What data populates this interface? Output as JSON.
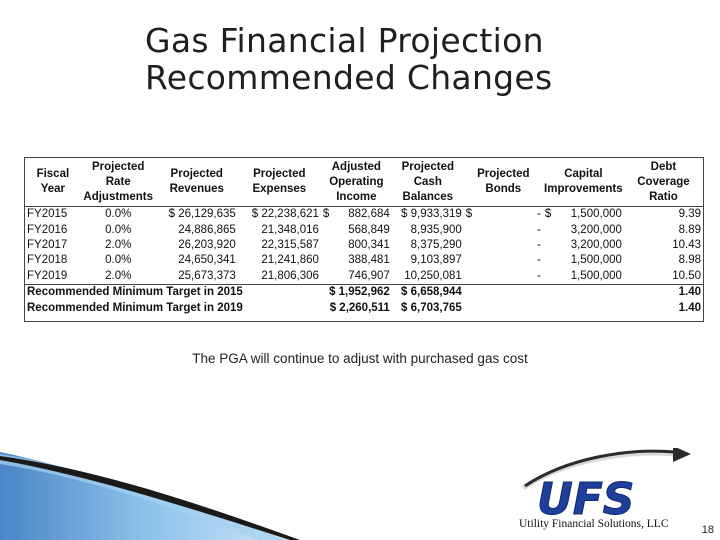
{
  "title": {
    "line1": "Gas Financial Projection",
    "line2": "Recommended Changes"
  },
  "table": {
    "headers": [
      "Fiscal Year",
      "Projected Rate Adjustments",
      "Projected Revenues",
      "Projected Expenses",
      "Adjusted Operating Income",
      "Projected Cash Balances",
      "Projected Bonds",
      "Capital Improvements",
      "Debt Coverage Ratio"
    ],
    "rows": [
      {
        "year": "FY2015",
        "rate": "0.0%",
        "revenues": "$ 26,129,635",
        "expenses": "$ 22,238,621",
        "income_cur": "$",
        "income": "882,684",
        "cash": "$ 9,933,319",
        "bonds_cur": "$",
        "bonds": "-",
        "capital_cur": "$",
        "capital": "1,500,000",
        "ratio": "9.39"
      },
      {
        "year": "FY2016",
        "rate": "0.0%",
        "revenues": "24,886,865",
        "expenses": "21,348,016",
        "income_cur": "",
        "income": "568,849",
        "cash": "8,935,900",
        "bonds_cur": "",
        "bonds": "-",
        "capital_cur": "",
        "capital": "3,200,000",
        "ratio": "8.89"
      },
      {
        "year": "FY2017",
        "rate": "2.0%",
        "revenues": "26,203,920",
        "expenses": "22,315,587",
        "income_cur": "",
        "income": "800,341",
        "cash": "8,375,290",
        "bonds_cur": "",
        "bonds": "-",
        "capital_cur": "",
        "capital": "3,200,000",
        "ratio": "10.43"
      },
      {
        "year": "FY2018",
        "rate": "0.0%",
        "revenues": "24,650,341",
        "expenses": "21,241,860",
        "income_cur": "",
        "income": "388,481",
        "cash": "9,103,897",
        "bonds_cur": "",
        "bonds": "-",
        "capital_cur": "",
        "capital": "1,500,000",
        "ratio": "8.98"
      },
      {
        "year": "FY2019",
        "rate": "2.0%",
        "revenues": "25,673,373",
        "expenses": "21,806,306",
        "income_cur": "",
        "income": "746,907",
        "cash": "10,250,081",
        "bonds_cur": "",
        "bonds": "-",
        "capital_cur": "",
        "capital": "1,500,000",
        "ratio": "10.50"
      }
    ],
    "targets": [
      {
        "label": "Recommended Minimum Target in 2015",
        "income": "$ 1,952,962",
        "cash": "$ 6,658,944",
        "ratio": "1.40"
      },
      {
        "label": "Recommended Minimum Target in 2019",
        "income": "$ 2,260,511",
        "cash": "$ 6,703,765",
        "ratio": "1.40"
      }
    ]
  },
  "footnote": "The PGA will continue to adjust with purchased gas cost",
  "logo": {
    "text": "UFS",
    "company": "Utility Financial Solutions, LLC",
    "colors": {
      "blue": "#1e3f9a",
      "dark": "#1a1a1a"
    }
  },
  "page_number": "18"
}
